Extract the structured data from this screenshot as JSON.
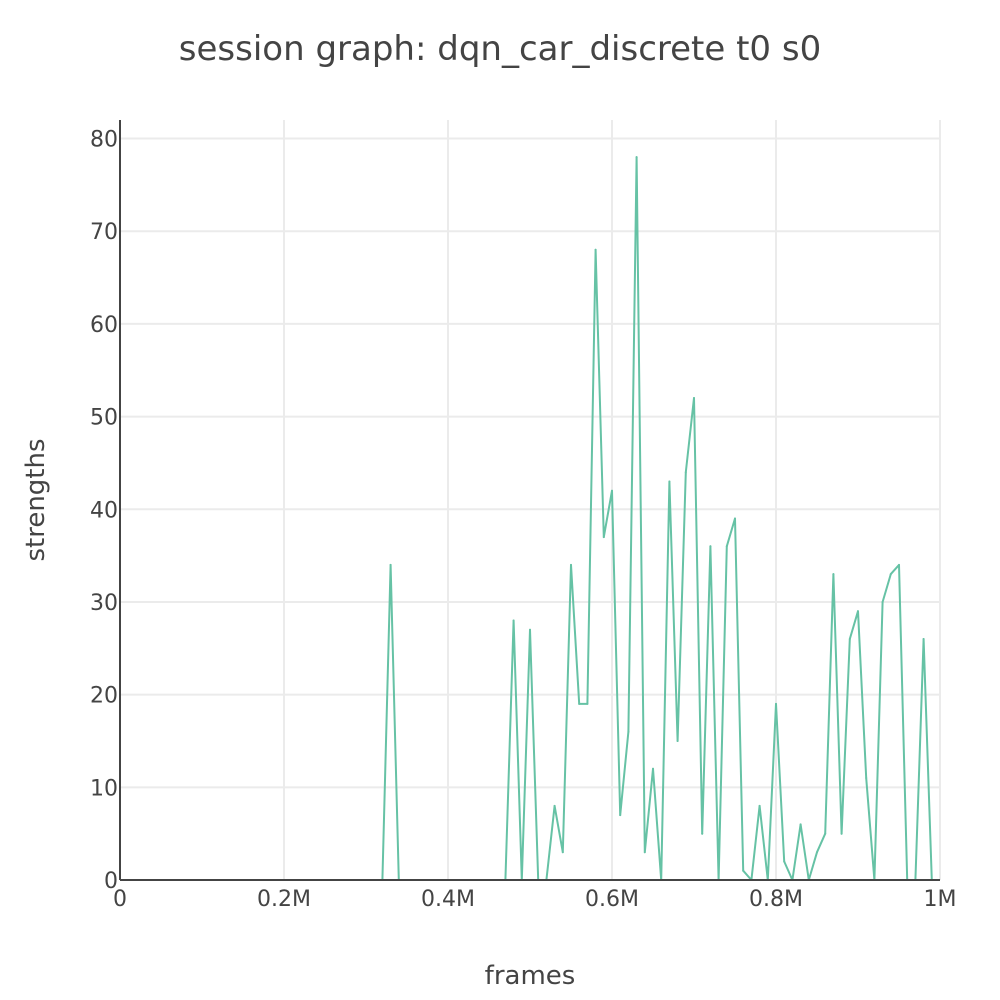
{
  "chart_data": {
    "type": "line",
    "title": "session graph: dqn_car_discrete t0 s0",
    "xlabel": "frames",
    "ylabel": "strengths",
    "xlim": [
      0,
      1000000
    ],
    "ylim": [
      0,
      82
    ],
    "x_ticks": [
      {
        "value": 0,
        "label": "0"
      },
      {
        "value": 200000,
        "label": "0.2M"
      },
      {
        "value": 400000,
        "label": "0.4M"
      },
      {
        "value": 600000,
        "label": "0.6M"
      },
      {
        "value": 800000,
        "label": "0.8M"
      },
      {
        "value": 1000000,
        "label": "1M"
      }
    ],
    "y_ticks": [
      {
        "value": 0,
        "label": "0"
      },
      {
        "value": 10,
        "label": "10"
      },
      {
        "value": 20,
        "label": "20"
      },
      {
        "value": 30,
        "label": "30"
      },
      {
        "value": 40,
        "label": "40"
      },
      {
        "value": 50,
        "label": "50"
      },
      {
        "value": 60,
        "label": "60"
      },
      {
        "value": 70,
        "label": "70"
      },
      {
        "value": 80,
        "label": "80"
      }
    ],
    "grid": true,
    "legend": false,
    "series": [
      {
        "color": "#66c2a5",
        "x": [
          10000,
          320000,
          330000,
          340000,
          470000,
          480000,
          490000,
          500000,
          510000,
          520000,
          530000,
          540000,
          550000,
          560000,
          570000,
          580000,
          590000,
          600000,
          610000,
          620000,
          630000,
          640000,
          650000,
          660000,
          670000,
          680000,
          690000,
          700000,
          710000,
          720000,
          730000,
          740000,
          750000,
          760000,
          770000,
          780000,
          790000,
          800000,
          810000,
          820000,
          830000,
          840000,
          850000,
          860000,
          870000,
          880000,
          890000,
          900000,
          910000,
          920000,
          930000,
          940000,
          950000,
          960000,
          970000,
          980000,
          990000
        ],
        "y": [
          0,
          0,
          34,
          0,
          0,
          28,
          0,
          27,
          0,
          0,
          8,
          3,
          34,
          19,
          19,
          68,
          37,
          42,
          7,
          16,
          78,
          3,
          12,
          0,
          43,
          15,
          44,
          52,
          5,
          36,
          0,
          36,
          39,
          1,
          0,
          8,
          0,
          19,
          2,
          0,
          6,
          0,
          3,
          5,
          33,
          5,
          26,
          29,
          11,
          0,
          30,
          33,
          34,
          0,
          0,
          26,
          0
        ]
      }
    ]
  }
}
